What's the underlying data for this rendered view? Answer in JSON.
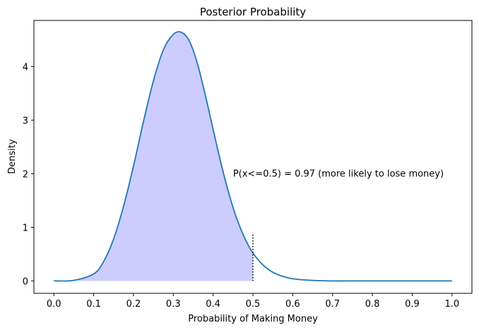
{
  "chart_data": {
    "type": "area",
    "title": "Posterior Probability",
    "xlabel": "Probability of Making Money",
    "ylabel": "Density",
    "xlim": [
      -0.05,
      1.05
    ],
    "ylim": [
      -0.232,
      4.86
    ],
    "xticks": [
      "0.0",
      "0.1",
      "0.2",
      "0.3",
      "0.4",
      "0.5",
      "0.6",
      "0.7",
      "0.8",
      "0.9",
      "1.0"
    ],
    "yticks": [
      "0",
      "1",
      "2",
      "3",
      "4"
    ],
    "grid": false,
    "series": [
      {
        "x": [
          0.0,
          0.05,
          0.1,
          0.125,
          0.15,
          0.175,
          0.2,
          0.225,
          0.25,
          0.275,
          0.3,
          0.32,
          0.34,
          0.36,
          0.38,
          0.4,
          0.42,
          0.44,
          0.46,
          0.48,
          0.5,
          0.525,
          0.55,
          0.575,
          0.6,
          0.65,
          0.7,
          0.75,
          0.8,
          0.9,
          1.0
        ],
        "y": [
          0.0,
          0.01,
          0.13,
          0.36,
          0.78,
          1.39,
          2.14,
          2.97,
          3.73,
          4.31,
          4.6,
          4.64,
          4.48,
          4.07,
          3.48,
          2.83,
          2.19,
          1.62,
          1.15,
          0.79,
          0.52,
          0.3,
          0.16,
          0.085,
          0.04,
          0.01,
          0.0,
          0.0,
          0.0,
          0.0,
          0.0
        ],
        "color": "#1f77b4"
      }
    ],
    "shaded_region": {
      "x_from": 0.0,
      "x_to": 0.5,
      "color": "#ccccff"
    },
    "marker_line": {
      "x": 0.5,
      "y_to": 0.9,
      "style": "dotted",
      "color": "#000000"
    },
    "annotation": {
      "text": "P(x<=0.5) = 0.97 (more likely to lose money)",
      "x": 0.45,
      "y": 2.0
    }
  }
}
